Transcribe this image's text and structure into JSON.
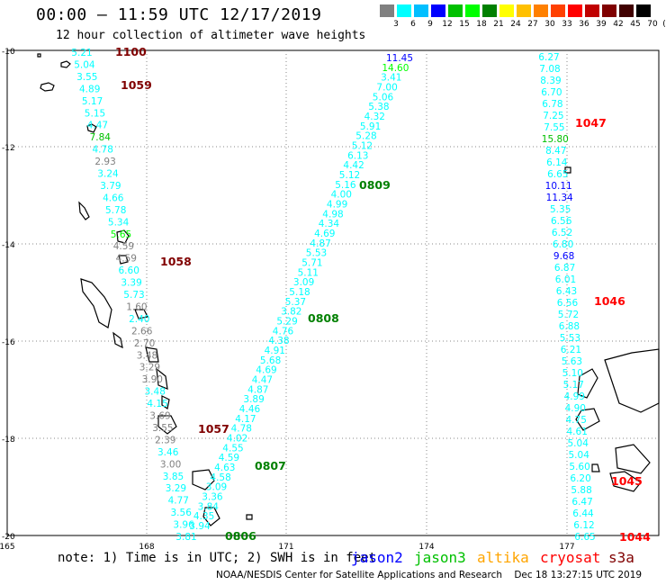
{
  "header": {
    "title": "00:00 – 11:59 UTC 12/17/2019",
    "subtitle": "12 hour collection of altimeter wave heights"
  },
  "color_scale": {
    "unit": "(ft)",
    "labels": [
      "3",
      "6",
      "9",
      "12",
      "15",
      "18",
      "21",
      "24",
      "27",
      "30",
      "33",
      "36",
      "39",
      "42",
      "45",
      "70"
    ],
    "colors": [
      "#808080",
      "#00ffff",
      "#00bfff",
      "#0000ff",
      "#00c000",
      "#00ff00",
      "#008000",
      "#ffff00",
      "#ffc000",
      "#ff8000",
      "#ff4000",
      "#ff0000",
      "#c00000",
      "#800000",
      "#400000",
      "#000000"
    ]
  },
  "axes": {
    "lat_labels": [
      "-10",
      "-12",
      "-14",
      "-16",
      "-18",
      "-20"
    ],
    "lon_labels": [
      "165",
      "168",
      "171",
      "174",
      "177"
    ]
  },
  "tracks": [
    {
      "name": "track-left",
      "values": [
        "5.21",
        "5.04",
        "3.55",
        "4.89",
        "5.17",
        "5.15",
        "4.47",
        "7.84",
        "4.78",
        "2.93",
        "3.24",
        "3.79",
        "4.66",
        "5.78",
        "5.34",
        "5.65",
        "4.59",
        "4.59",
        "6.60",
        "3.39",
        "5.73",
        "1.60",
        "2.40",
        "2.66",
        "2.70",
        "3.48",
        "3.29",
        "3.90",
        "3.48",
        "4.15",
        "3.69",
        "3.55",
        "2.39",
        "3.46",
        "3.00",
        "3.85",
        "3.29",
        "4.77",
        "3.56",
        "3.96",
        "3.81"
      ],
      "colors": [
        "#00ffff",
        "#00ffff",
        "#00ffff",
        "#00ffff",
        "#00ffff",
        "#00ffff",
        "#00ffff",
        "#00c000",
        "#00ffff",
        "#808080",
        "#00ffff",
        "#00ffff",
        "#00ffff",
        "#00ffff",
        "#00ffff",
        "#00ff00",
        "#808080",
        "#808080",
        "#00ffff",
        "#00ffff",
        "#00ffff",
        "#808080",
        "#00ffff",
        "#808080",
        "#808080",
        "#808080",
        "#808080",
        "#808080",
        "#00ffff",
        "#00ffff",
        "#808080",
        "#808080",
        "#808080",
        "#00ffff",
        "#808080",
        "#00ffff",
        "#00ffff",
        "#00ffff",
        "#00ffff",
        "#00ffff",
        "#00ffff"
      ]
    },
    {
      "name": "track-diagonal",
      "values": [
        "11.45",
        "14.60",
        "3.41",
        "7.00",
        "5.06",
        "5.38",
        "4.32",
        "5.91",
        "5.28",
        "5.12",
        "6.13",
        "4.42",
        "5.12",
        "5.16",
        "4.00",
        "4.99",
        "4.98",
        "4.34",
        "4.69",
        "4.87",
        "5.53",
        "5.71",
        "5.11",
        "3.09",
        "5.18",
        "5.37",
        "3.82",
        "5.29",
        "4.76",
        "4.38",
        "4.91",
        "5.68",
        "4.69",
        "4.47",
        "4.87",
        "3.89",
        "4.46",
        "4.17",
        "4.78",
        "4.02",
        "4.55",
        "4.59",
        "4.63",
        "4.58",
        "3.09",
        "3.36",
        "3.84",
        "4.35",
        "3.94"
      ],
      "colors": [
        "#0000ff",
        "#00ff00",
        "#00ffff",
        "#00ffff",
        "#00ffff",
        "#00ffff",
        "#00ffff",
        "#00ffff",
        "#00ffff",
        "#00ffff",
        "#00ffff",
        "#00ffff",
        "#00ffff",
        "#00ffff",
        "#00ffff",
        "#00ffff",
        "#00ffff",
        "#00ffff",
        "#00ffff",
        "#00ffff",
        "#00ffff",
        "#00ffff",
        "#00ffff",
        "#00ffff",
        "#00ffff",
        "#00ffff",
        "#00ffff",
        "#00ffff",
        "#00ffff",
        "#00ffff",
        "#00ffff",
        "#00ffff",
        "#00ffff",
        "#00ffff",
        "#00ffff",
        "#00ffff",
        "#00ffff",
        "#00ffff",
        "#00ffff",
        "#00ffff",
        "#00ffff",
        "#00ffff",
        "#00ffff",
        "#00ffff",
        "#00ffff",
        "#00ffff",
        "#00ffff",
        "#00ffff",
        "#00ffff"
      ]
    },
    {
      "name": "track-right",
      "values": [
        "6.27",
        "7.08",
        "8.39",
        "6.70",
        "6.78",
        "7.25",
        "7.55",
        "15.80",
        "8.47",
        "6.14",
        "6.65",
        "10.11",
        "11.34",
        "5.35",
        "6.56",
        "6.52",
        "6.80",
        "9.68",
        "6.87",
        "6.01",
        "6.43",
        "6.56",
        "5.72",
        "6.88",
        "5.53",
        "6.21",
        "5.63",
        "5.10",
        "5.17",
        "4.99",
        "4.90",
        "4.75",
        "4.61",
        "5.04",
        "5.04",
        "5.60",
        "6.20",
        "5.88",
        "6.47",
        "6.44",
        "6.12",
        "6.65"
      ],
      "colors": [
        "#00ffff",
        "#00ffff",
        "#00ffff",
        "#00ffff",
        "#00ffff",
        "#00ffff",
        "#00ffff",
        "#00c000",
        "#00ffff",
        "#00ffff",
        "#00ffff",
        "#0000ff",
        "#0000ff",
        "#00ffff",
        "#00ffff",
        "#00ffff",
        "#00ffff",
        "#0000ff",
        "#00ffff",
        "#00ffff",
        "#00ffff",
        "#00ffff",
        "#00ffff",
        "#00ffff",
        "#00ffff",
        "#00ffff",
        "#00ffff",
        "#00ffff",
        "#00ffff",
        "#00ffff",
        "#00ffff",
        "#00ffff",
        "#00ffff",
        "#00ffff",
        "#00ffff",
        "#00ffff",
        "#00ffff",
        "#00ffff",
        "#00ffff",
        "#00ffff",
        "#00ffff",
        "#00ffff"
      ]
    }
  ],
  "pass_labels": [
    {
      "text": "1100",
      "color": "#800000"
    },
    {
      "text": "1059",
      "color": "#800000"
    },
    {
      "text": "1058",
      "color": "#800000"
    },
    {
      "text": "1057",
      "color": "#800000"
    },
    {
      "text": "0809",
      "color": "#008000"
    },
    {
      "text": "0808",
      "color": "#008000"
    },
    {
      "text": "0807",
      "color": "#008000"
    },
    {
      "text": "0806",
      "color": "#008000"
    },
    {
      "text": "1047",
      "color": "#ff0000"
    },
    {
      "text": "1046",
      "color": "#ff0000"
    },
    {
      "text": "1045",
      "color": "#ff0000"
    },
    {
      "text": "1044",
      "color": "#ff0000"
    }
  ],
  "note": "note: 1) Time is in UTC; 2) SWH is in feet",
  "satellites": [
    {
      "name": "jason2",
      "color": "#0000ff"
    },
    {
      "name": "jason3",
      "color": "#00c000"
    },
    {
      "name": "altika",
      "color": "#ffa500"
    },
    {
      "name": "cryosat",
      "color": "#ff0000"
    },
    {
      "name": "s3a",
      "color": "#800000"
    }
  ],
  "footer": "NOAA/NESDIS Center for Satellite Applications and Research    Dec 18 13:27:15 UTC 2019"
}
